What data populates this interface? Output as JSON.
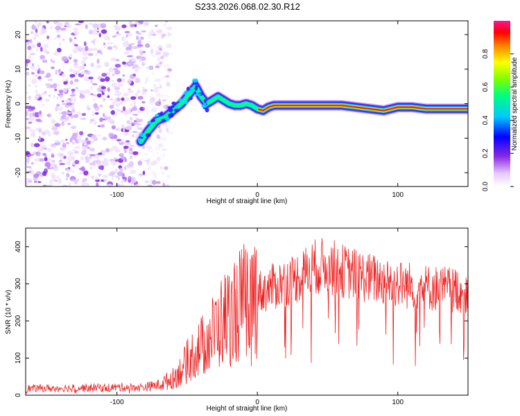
{
  "title": "S233.2026.068.02.30.R12",
  "chart_data": [
    {
      "type": "heatmap",
      "name": "spectrogram",
      "xlabel": "Height of straight line (km)",
      "ylabel": "Frequency (Hz)",
      "xlim": [
        -165,
        150
      ],
      "ylim": [
        -24,
        24
      ],
      "xticks": [
        "-100",
        "0",
        "100"
      ],
      "xtick_values": [
        -100,
        0,
        100
      ],
      "yticks": [
        "-20",
        "-10",
        "0",
        "10",
        "20"
      ],
      "ytick_values": [
        -20,
        -10,
        0,
        10,
        20
      ],
      "noise_region": {
        "x_from": -165,
        "x_to": -68,
        "y_from": -24,
        "y_to": 24
      },
      "ridge": {
        "x": [
          -83,
          -78,
          -72,
          -66,
          -60,
          -54,
          -48,
          -44,
          -40,
          -36,
          -32,
          -28,
          -24,
          -20,
          -16,
          -12,
          -8,
          -4,
          0,
          4,
          8,
          12,
          20,
          40,
          60,
          80,
          90,
          100,
          110,
          120,
          130,
          150
        ],
        "y": [
          -11,
          -8,
          -5,
          -4,
          -2,
          0,
          3,
          5,
          2,
          0,
          1,
          2,
          1,
          0,
          -0.5,
          -0.5,
          0,
          -0.5,
          -1.5,
          -2,
          -1,
          -0.5,
          -0.5,
          -0.5,
          -0.5,
          -1.5,
          -2,
          -1,
          -1,
          -1.5,
          -1.5,
          -1.5
        ]
      },
      "colorbar": {
        "label": "Normalized spectral amplitude",
        "range": [
          0,
          1
        ],
        "ticks": [
          "0.0",
          "0.2",
          "0.4",
          "0.6",
          "0.8"
        ],
        "tick_values": [
          0,
          0.2,
          0.4,
          0.6,
          0.8
        ]
      }
    },
    {
      "type": "line",
      "name": "snr",
      "xlabel": "Height of straight line (km)",
      "ylabel": "SNR (10 * v/v)",
      "xlim": [
        -165,
        150
      ],
      "ylim": [
        0,
        450
      ],
      "xticks": [
        "-100",
        "0",
        "100"
      ],
      "xtick_values": [
        -100,
        0,
        100
      ],
      "yticks": [
        "0",
        "100",
        "200",
        "300",
        "400"
      ],
      "ytick_values": [
        0,
        100,
        200,
        300,
        400
      ],
      "line_color": "#ee2020",
      "envelope": {
        "x": [
          -165,
          -80,
          -70,
          -60,
          -55,
          -50,
          -45,
          -40,
          -35,
          -30,
          -25,
          -20,
          -15,
          -10,
          -5,
          0,
          10,
          20,
          30,
          40,
          50,
          60,
          80,
          100,
          120,
          140,
          150
        ],
        "y": [
          18,
          22,
          28,
          45,
          65,
          90,
          115,
          130,
          150,
          175,
          200,
          215,
          235,
          250,
          260,
          275,
          290,
          305,
          320,
          345,
          350,
          335,
          315,
          300,
          290,
          285,
          280
        ]
      }
    }
  ]
}
